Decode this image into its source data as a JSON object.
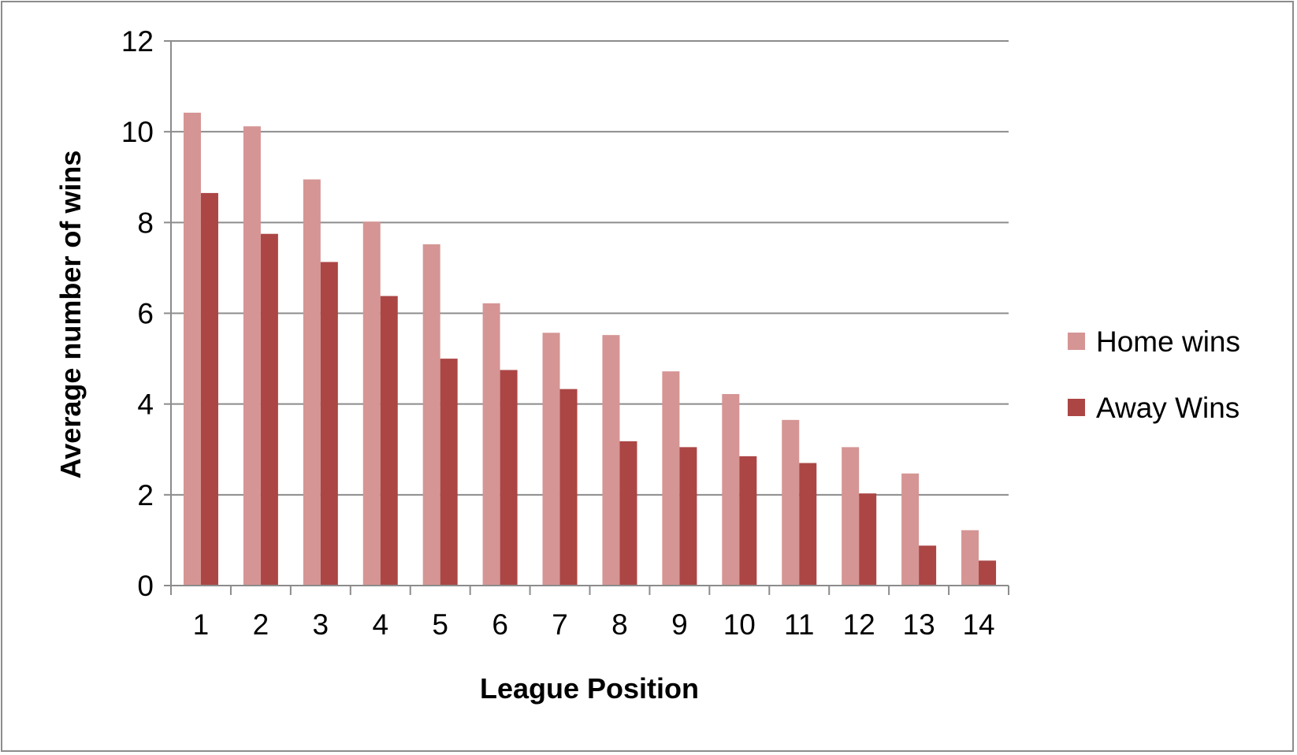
{
  "chart_data": {
    "type": "bar",
    "title": "",
    "xlabel": "League Position",
    "ylabel": "Average number of wins",
    "categories": [
      "1",
      "2",
      "3",
      "4",
      "5",
      "6",
      "7",
      "8",
      "9",
      "10",
      "11",
      "12",
      "13",
      "14"
    ],
    "series": [
      {
        "name": "Home wins",
        "color": "#d59594",
        "values": [
          10.42,
          10.12,
          8.95,
          8.02,
          7.52,
          6.22,
          5.57,
          5.52,
          4.72,
          4.22,
          3.65,
          3.05,
          2.47,
          1.22
        ]
      },
      {
        "name": "Away Wins",
        "color": "#ab4645",
        "values": [
          8.65,
          7.75,
          7.13,
          6.38,
          5.0,
          4.75,
          4.33,
          3.18,
          3.05,
          2.85,
          2.7,
          2.03,
          0.88,
          0.55
        ]
      }
    ],
    "ylim": [
      0,
      12
    ],
    "yticks": [
      0,
      2,
      4,
      6,
      8,
      10,
      12
    ],
    "grid": true,
    "legend_position": "right"
  }
}
